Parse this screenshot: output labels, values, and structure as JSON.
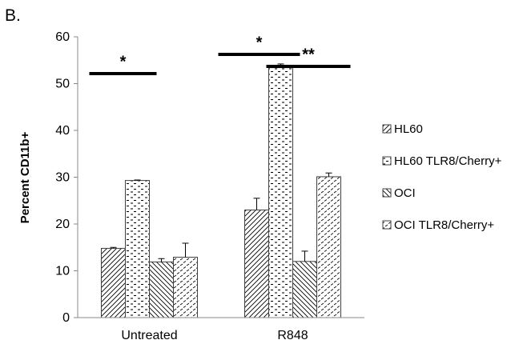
{
  "panel_label": "B.",
  "chart_data": {
    "type": "bar",
    "title": "",
    "xlabel": "",
    "ylabel": "Percent CD11b+",
    "ylim": [
      0,
      60
    ],
    "yticks": [
      0,
      10,
      20,
      30,
      40,
      50,
      60
    ],
    "categories": [
      "Untreated",
      "R848"
    ],
    "series": [
      {
        "name": "HL60",
        "values": [
          14.8,
          23.0
        ],
        "errors": [
          0.2,
          2.5
        ]
      },
      {
        "name": "HL60 TLR8/Cherry+",
        "values": [
          29.3,
          53.4
        ],
        "errors": [
          0.1,
          0.8
        ]
      },
      {
        "name": "OCI",
        "values": [
          11.9,
          12.0
        ],
        "errors": [
          0.7,
          2.2
        ]
      },
      {
        "name": "OCI TLR8/Cherry+",
        "values": [
          12.9,
          30.1
        ],
        "errors": [
          3.0,
          0.8
        ]
      }
    ],
    "legend_position": "right",
    "grid": false,
    "annotations": [
      {
        "text": "*",
        "group": "Untreated",
        "spans_series": [
          0,
          1
        ]
      },
      {
        "text": "*",
        "group": "R848",
        "spans_series": [
          0,
          1
        ]
      },
      {
        "text": "**",
        "group": "R848",
        "spans_series": [
          1,
          3
        ]
      }
    ]
  }
}
